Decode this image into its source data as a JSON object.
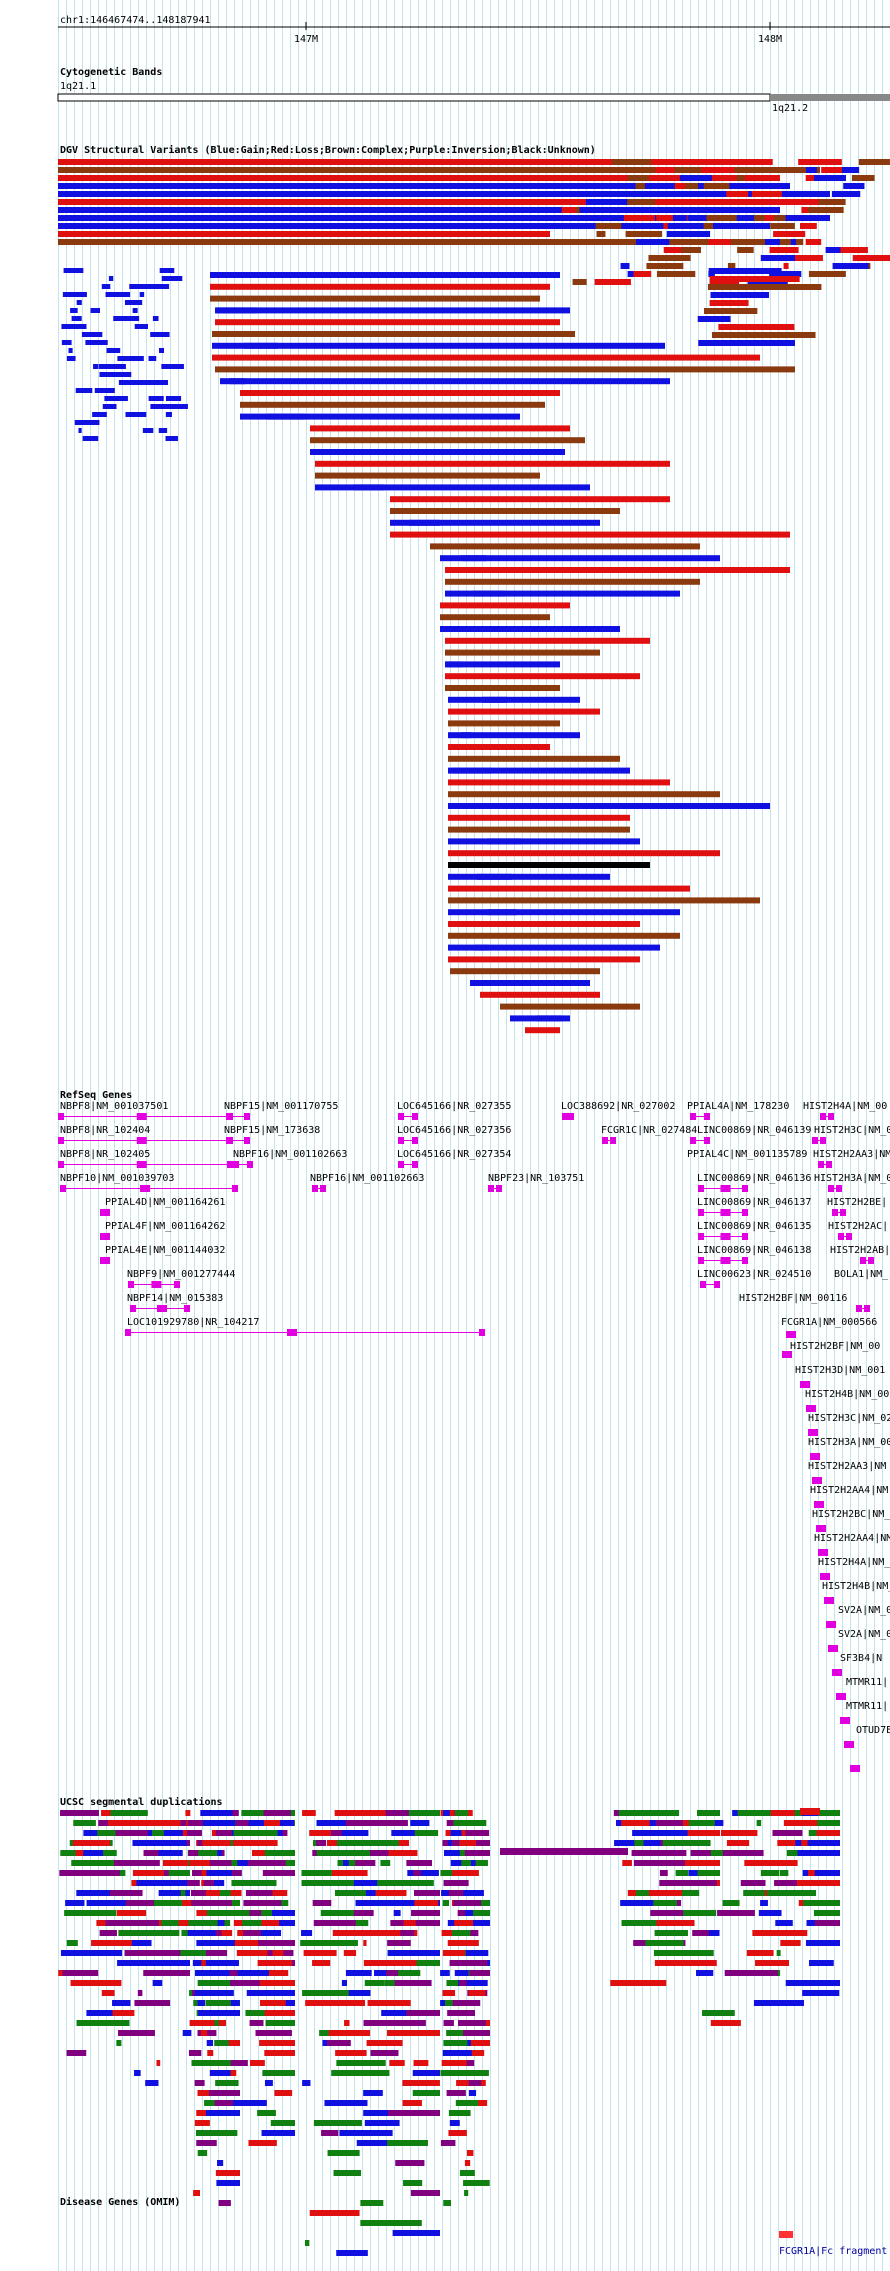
{
  "position": "chr1:146467474..148187941",
  "ruler": {
    "tick1": "147M",
    "tick2": "148M"
  },
  "cytobands": {
    "title": "Cytogenetic Bands",
    "band1": "1q21.1",
    "band2": "1q21.2"
  },
  "dgv": {
    "title": "DGV Structural Variants (Blue:Gain;Red:Loss;Brown:Complex;Purple:Inversion;Black:Unknown)"
  },
  "refseq": {
    "title": "RefSeq Genes",
    "labels": [
      "NBPF8|NM_001037501",
      "NBPF15|NM_001170755",
      "LOC645166|NR_027355",
      "LOC388692|NR_027002",
      "PPIAL4A|NM_178230",
      "HIST2H4A|NM_00",
      "NBPF8|NR_102404",
      "NBPF15|NM_173638",
      "LOC645166|NR_027356",
      "FCGR1C|NR_027484",
      "LINC00869|NR_046139",
      "HIST2H3C|NM_0",
      "NBPF8|NR_102405",
      "NBPF16|NM_001102663",
      "LOC645166|NR_027354",
      "PPIAL4C|NM_001135789",
      "HIST2H2AA3|NM_",
      "NBPF10|NM_001039703",
      "NBPF16|NM_001102663",
      "NBPF23|NR_103751",
      "LINC00869|NR_046136",
      "HIST2H3A|NM_0",
      "PPIAL4D|NM_001164261",
      "LINC00869|NR_046137",
      "HIST2H2BE|",
      "PPIAL4F|NM_001164262",
      "LINC00869|NR_046135",
      "HIST2H2AC|",
      "PPIAL4E|NM_001144032",
      "LINC00869|NR_046138",
      "HIST2H2AB|",
      "NBPF9|NM_001277444",
      "LINC00623|NR_024510",
      "BOLA1|NM_",
      "NBPF14|NM_015383",
      "HIST2H2BF|NM_00116",
      "LOC101929780|NR_104217",
      "FCGR1A|NM_000566",
      "HIST2H2BF|NM_00",
      "HIST2H3D|NM_001",
      "HIST2H4B|NM_00",
      "HIST2H3C|NM_02",
      "HIST2H3A|NM_00",
      "HIST2H2AA3|NM",
      "HIST2H2AA4|NM",
      "HIST2H2BC|NM_",
      "HIST2H2AA4|NM_",
      "HIST2H4A|NM_",
      "HIST2H4B|NM_",
      "SV2A|NM_0",
      "SV2A|NM_0",
      "SF3B4|N",
      "MTMR11|",
      "MTMR11|",
      "OTUD7E"
    ]
  },
  "segdup": {
    "title": "UCSC segmental duplications"
  },
  "omim": {
    "title": "Disease Genes (OMIM)",
    "feature": "FCGR1A|Fc fragment"
  },
  "colors": {
    "gain": "#1010e0",
    "loss": "#e01010",
    "complex": "#8b3a10",
    "inversion": "#800080",
    "unknown": "#000000",
    "gene": "#e000e0",
    "segdup_green": "#108010",
    "grid": "#bfe6ee"
  }
}
